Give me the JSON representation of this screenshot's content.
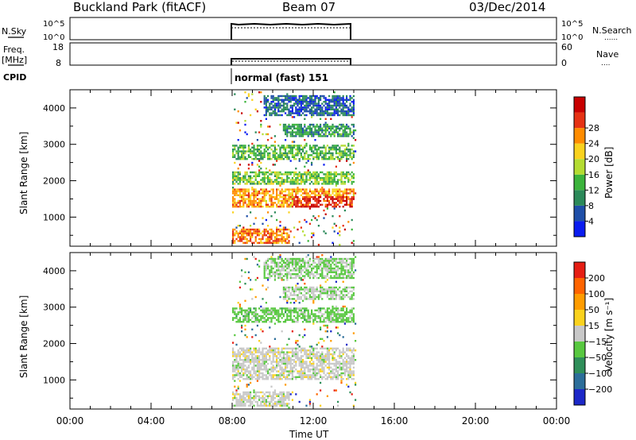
{
  "header": {
    "station": "Buckland Park (fitACF)",
    "beam": "Beam 07",
    "date": "03/Dec/2014"
  },
  "noise_panel": {
    "left_label": "N.Sky",
    "left_ticks": [
      "10^5",
      "10^0"
    ],
    "right_ticks": [
      "10^5",
      "10^0"
    ],
    "right_label": "N.Search",
    "legend_pattern": "......"
  },
  "freq_panel": {
    "left_label_line1": "Freq.",
    "left_label_line2": "[MHz]",
    "left_ticks": [
      "18",
      "8"
    ],
    "right_ticks": [
      "60",
      "0"
    ],
    "right_label": "Nave",
    "legend_pattern": "...."
  },
  "cpid_panel": {
    "label": "CPID",
    "mode_text": "normal (fast) 151"
  },
  "axes": {
    "xlabel": "Time UT",
    "x_ticks": [
      "00:00",
      "04:00",
      "08:00",
      "12:00",
      "16:00",
      "20:00",
      "00:00"
    ],
    "ylabel": "Slant Range [km]",
    "y_ticks": [
      "1000",
      "2000",
      "3000",
      "4000"
    ]
  },
  "colorbars": {
    "power": {
      "label": "Power [dB]",
      "ticks": [
        "4",
        "8",
        "12",
        "16",
        "20",
        "24",
        "28"
      ],
      "colors": [
        "#0a1cf0",
        "#1f4fa8",
        "#2c8a5a",
        "#3cb43c",
        "#b4dc32",
        "#fad21e",
        "#ff8c00",
        "#e63214",
        "#c80000"
      ]
    },
    "velocity": {
      "label": "Velocity [m s⁻¹]",
      "ticks": [
        "200",
        "100",
        "50",
        "15",
        "−15",
        "−50",
        "−100",
        "−200"
      ],
      "colors": [
        "#1c28c8",
        "#2c6e9a",
        "#2f8f5a",
        "#58c840",
        "#c8c8c8",
        "#fad21e",
        "#ff9c00",
        "#ff6400",
        "#e61e14"
      ]
    }
  },
  "chart_data": [
    {
      "type": "heatmap",
      "title": "Power",
      "x_label": "Time UT",
      "y_label": "Slant Range [km]",
      "x_range_hours": [
        0,
        24
      ],
      "y_range_km": [
        200,
        4500
      ],
      "data_time_range_hours": [
        8.0,
        14.05
      ],
      "value_label": "Power [dB]",
      "value_range": [
        0,
        32
      ],
      "echo_regions": [
        {
          "t_start": 8.0,
          "t_end": 10.8,
          "r_start": 300,
          "r_end": 700,
          "value": 24
        },
        {
          "t_start": 8.0,
          "t_end": 14.0,
          "r_start": 1300,
          "r_end": 1800,
          "value": 22
        },
        {
          "t_start": 11.0,
          "t_end": 14.0,
          "r_start": 1300,
          "r_end": 1600,
          "value": 28
        },
        {
          "t_start": 8.0,
          "t_end": 14.0,
          "r_start": 1900,
          "r_end": 2300,
          "value": 14
        },
        {
          "t_start": 8.0,
          "t_end": 14.0,
          "r_start": 2600,
          "r_end": 3000,
          "value": 12
        },
        {
          "t_start": 10.5,
          "t_end": 14.0,
          "r_start": 3200,
          "r_end": 3600,
          "value": 10
        },
        {
          "t_start": 9.5,
          "t_end": 14.0,
          "r_start": 3800,
          "r_end": 4400,
          "value": 6
        }
      ]
    },
    {
      "type": "heatmap",
      "title": "Velocity",
      "x_label": "Time UT",
      "y_label": "Slant Range [km]",
      "x_range_hours": [
        0,
        24
      ],
      "y_range_km": [
        200,
        4500
      ],
      "data_time_range_hours": [
        8.0,
        14.05
      ],
      "value_label": "Velocity [m s-1]",
      "value_range": [
        -250,
        250
      ],
      "echo_regions": [
        {
          "t_start": 8.0,
          "t_end": 10.8,
          "r_start": 300,
          "r_end": 700,
          "value": 0
        },
        {
          "t_start": 8.0,
          "t_end": 14.0,
          "r_start": 1000,
          "r_end": 1900,
          "value": 0
        },
        {
          "t_start": 8.0,
          "t_end": 14.0,
          "r_start": 2600,
          "r_end": 3000,
          "value": -50
        },
        {
          "t_start": 10.5,
          "t_end": 14.0,
          "r_start": 3200,
          "r_end": 3600,
          "value": -20
        },
        {
          "t_start": 9.5,
          "t_end": 14.0,
          "r_start": 3800,
          "r_end": 4400,
          "value": -30
        }
      ]
    }
  ]
}
